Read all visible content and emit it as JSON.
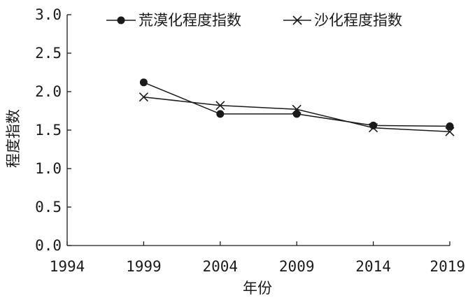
{
  "chart_data": {
    "type": "line",
    "x": [
      1999,
      2004,
      2009,
      2014,
      2019
    ],
    "series": [
      {
        "name": "荒漠化程度指数",
        "marker": "circle",
        "values": [
          2.12,
          1.71,
          1.71,
          1.56,
          1.55
        ]
      },
      {
        "name": "沙化程度指数",
        "marker": "x",
        "values": [
          1.93,
          1.82,
          1.77,
          1.53,
          1.48
        ]
      }
    ],
    "xlabel": "年份",
    "ylabel": "程度指数",
    "xlim": [
      1994,
      2019
    ],
    "ylim": [
      0,
      3.0
    ],
    "x_ticks": [
      "1994",
      "1999",
      "2004",
      "2009",
      "2014",
      "2019"
    ],
    "y_ticks": [
      "0.0",
      "0.5",
      "1.0",
      "1.5",
      "2.0",
      "2.5",
      "3.0"
    ],
    "grid": false,
    "legend_position": "top",
    "colors": {
      "line": "#1a1a1a",
      "background": "#ffffff"
    }
  }
}
